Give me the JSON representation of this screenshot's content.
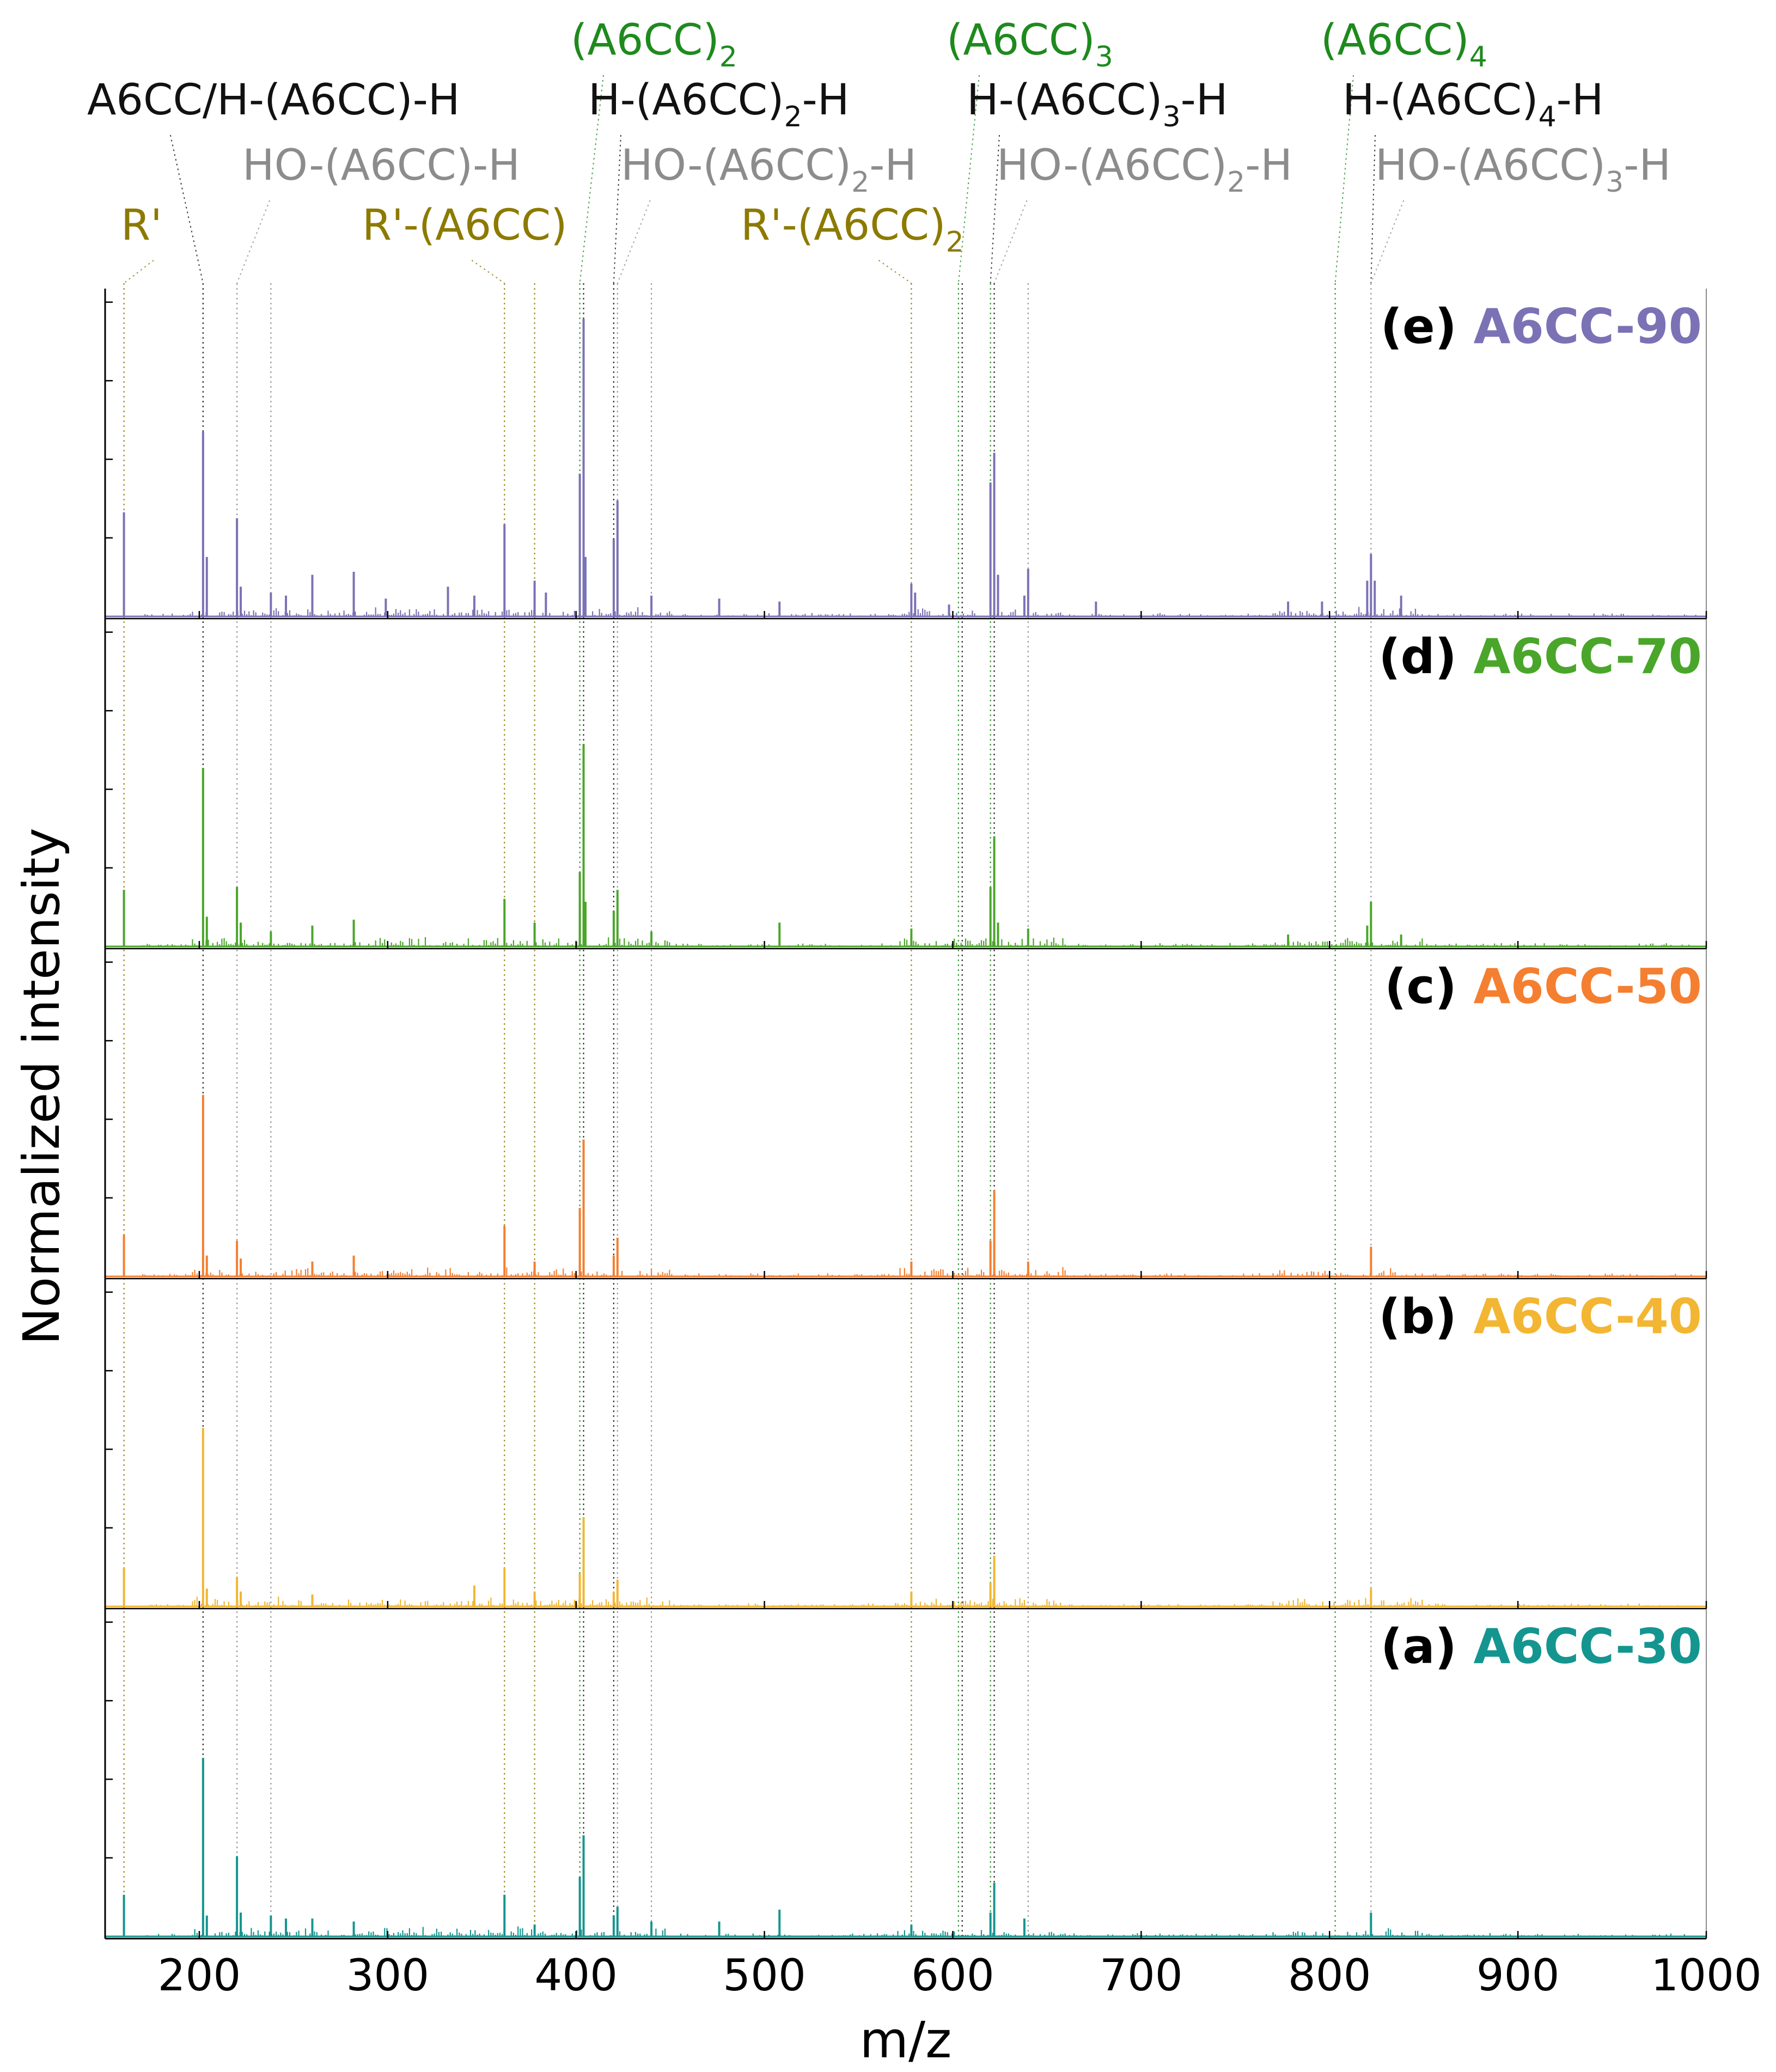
{
  "chart_data": {
    "type": "line",
    "title": "",
    "xlabel": "m/z",
    "ylabel": "Normalized intensity",
    "xlim": [
      150,
      1000
    ],
    "ylim": [
      0,
      1
    ],
    "x_ticks": [
      "200",
      "300",
      "400",
      "500",
      "600",
      "700",
      "800",
      "900",
      "1000"
    ],
    "x_tick_values": [
      200,
      300,
      400,
      500,
      600,
      700,
      800,
      900,
      1000
    ],
    "grid": false,
    "legend": "panel labels at top-right of each panel",
    "panels": [
      {
        "id": "e",
        "letter": "(e)",
        "name": "A6CC-90",
        "color": "#7b72b5",
        "peaks": [
          [
            160,
            0.35
          ],
          [
            202,
            0.62
          ],
          [
            204,
            0.2
          ],
          [
            220,
            0.33
          ],
          [
            222,
            0.1
          ],
          [
            238,
            0.08
          ],
          [
            246,
            0.07
          ],
          [
            260,
            0.14
          ],
          [
            282,
            0.15
          ],
          [
            299,
            0.06
          ],
          [
            332,
            0.1
          ],
          [
            346,
            0.07
          ],
          [
            362,
            0.31
          ],
          [
            378,
            0.12
          ],
          [
            384,
            0.08
          ],
          [
            402,
            0.48
          ],
          [
            404,
            1.0
          ],
          [
            405,
            0.2
          ],
          [
            420,
            0.26
          ],
          [
            422,
            0.39
          ],
          [
            440,
            0.07
          ],
          [
            476,
            0.06
          ],
          [
            508,
            0.05
          ],
          [
            578,
            0.11
          ],
          [
            580,
            0.08
          ],
          [
            598,
            0.04
          ],
          [
            620,
            0.45
          ],
          [
            622,
            0.55
          ],
          [
            624,
            0.14
          ],
          [
            638,
            0.07
          ],
          [
            640,
            0.16
          ],
          [
            676,
            0.05
          ],
          [
            778,
            0.05
          ],
          [
            796,
            0.05
          ],
          [
            820,
            0.12
          ],
          [
            822,
            0.21
          ],
          [
            824,
            0.12
          ],
          [
            838,
            0.07
          ]
        ]
      },
      {
        "id": "d",
        "letter": "(d)",
        "name": "A6CC-70",
        "color": "#4aa62a",
        "peaks": [
          [
            160,
            0.19
          ],
          [
            202,
            0.6
          ],
          [
            204,
            0.1
          ],
          [
            220,
            0.2
          ],
          [
            222,
            0.08
          ],
          [
            238,
            0.05
          ],
          [
            260,
            0.07
          ],
          [
            282,
            0.09
          ],
          [
            362,
            0.16
          ],
          [
            378,
            0.08
          ],
          [
            402,
            0.25
          ],
          [
            404,
            0.68
          ],
          [
            405,
            0.15
          ],
          [
            420,
            0.12
          ],
          [
            422,
            0.19
          ],
          [
            440,
            0.05
          ],
          [
            508,
            0.08
          ],
          [
            578,
            0.06
          ],
          [
            620,
            0.2
          ],
          [
            622,
            0.37
          ],
          [
            624,
            0.08
          ],
          [
            640,
            0.06
          ],
          [
            778,
            0.04
          ],
          [
            820,
            0.07
          ],
          [
            822,
            0.15
          ],
          [
            838,
            0.04
          ]
        ]
      },
      {
        "id": "c",
        "letter": "(c)",
        "name": "A6CC-50",
        "color": "#f47f30",
        "peaks": [
          [
            160,
            0.14
          ],
          [
            202,
            0.61
          ],
          [
            204,
            0.07
          ],
          [
            220,
            0.12
          ],
          [
            222,
            0.06
          ],
          [
            260,
            0.05
          ],
          [
            282,
            0.07
          ],
          [
            362,
            0.17
          ],
          [
            378,
            0.05
          ],
          [
            402,
            0.23
          ],
          [
            404,
            0.46
          ],
          [
            420,
            0.07
          ],
          [
            422,
            0.13
          ],
          [
            578,
            0.05
          ],
          [
            620,
            0.12
          ],
          [
            622,
            0.29
          ],
          [
            640,
            0.05
          ],
          [
            822,
            0.1
          ]
        ]
      },
      {
        "id": "b",
        "letter": "(b)",
        "name": "A6CC-40",
        "color": "#f2b632",
        "peaks": [
          [
            160,
            0.13
          ],
          [
            202,
            0.6
          ],
          [
            204,
            0.06
          ],
          [
            220,
            0.1
          ],
          [
            222,
            0.05
          ],
          [
            260,
            0.04
          ],
          [
            346,
            0.07
          ],
          [
            362,
            0.13
          ],
          [
            378,
            0.05
          ],
          [
            402,
            0.11
          ],
          [
            404,
            0.3
          ],
          [
            420,
            0.05
          ],
          [
            422,
            0.09
          ],
          [
            578,
            0.05
          ],
          [
            620,
            0.08
          ],
          [
            622,
            0.17
          ],
          [
            822,
            0.06
          ]
        ]
      },
      {
        "id": "a",
        "letter": "(a)",
        "name": "A6CC-30",
        "color": "#15958f",
        "peaks": [
          [
            160,
            0.14
          ],
          [
            202,
            0.6
          ],
          [
            204,
            0.07
          ],
          [
            220,
            0.27
          ],
          [
            222,
            0.08
          ],
          [
            238,
            0.07
          ],
          [
            246,
            0.06
          ],
          [
            260,
            0.06
          ],
          [
            282,
            0.05
          ],
          [
            362,
            0.14
          ],
          [
            378,
            0.04
          ],
          [
            402,
            0.2
          ],
          [
            404,
            0.34
          ],
          [
            420,
            0.07
          ],
          [
            422,
            0.1
          ],
          [
            440,
            0.05
          ],
          [
            476,
            0.05
          ],
          [
            508,
            0.09
          ],
          [
            578,
            0.04
          ],
          [
            620,
            0.08
          ],
          [
            622,
            0.18
          ],
          [
            638,
            0.06
          ],
          [
            822,
            0.08
          ]
        ]
      }
    ],
    "annotations": [
      {
        "text": "(A6CC)",
        "sub": "2",
        "color": "#1e8a1e",
        "x": 402
      },
      {
        "text": "(A6CC)",
        "sub": "3",
        "color": "#1e8a1e",
        "x": 603
      },
      {
        "text": "(A6CC)",
        "sub": "4",
        "color": "#1e8a1e",
        "x": 803
      },
      {
        "text": "A6CC/H-(A6CC)-H",
        "sub": "",
        "color": "#111111",
        "x": 202
      },
      {
        "text": "H-(A6CC)",
        "sub": "2",
        "tail": "-H",
        "color": "#111111",
        "x": 420
      },
      {
        "text": "H-(A6CC)",
        "sub": "3",
        "tail": "-H",
        "color": "#111111",
        "x": 620
      },
      {
        "text": "H-(A6CC)",
        "sub": "4",
        "tail": "-H",
        "color": "#111111",
        "x": 822
      },
      {
        "text": "HO-(A6CC)-H",
        "sub": "",
        "color": "#8c8c8c",
        "x": 220
      },
      {
        "text": "HO-(A6CC)",
        "sub": "2",
        "tail": "-H",
        "color": "#8c8c8c",
        "x": 422
      },
      {
        "text": "HO-(A6CC)",
        "sub": "2",
        "tail": "-H",
        "color": "#8c8c8c",
        "x": 622
      },
      {
        "text": "HO-(A6CC)",
        "sub": "3",
        "tail": "-H",
        "color": "#8c8c8c",
        "x": 822
      },
      {
        "text": "R'",
        "sub": "",
        "color": "#8c7a00",
        "x": 160
      },
      {
        "text": "R'-(A6CC)",
        "sub": "",
        "color": "#8c7a00",
        "x": 362
      },
      {
        "text": "R'-(A6CC)",
        "sub": "2",
        "color": "#8c7a00",
        "x": 578
      }
    ],
    "guide_lines": [
      {
        "x": 160,
        "color": "#8c7a00"
      },
      {
        "x": 202,
        "color": "#111111"
      },
      {
        "x": 220,
        "color": "#8c8c8c"
      },
      {
        "x": 238,
        "color": "#8c8c8c"
      },
      {
        "x": 362,
        "color": "#8c7a00"
      },
      {
        "x": 378,
        "color": "#8c7a00"
      },
      {
        "x": 402,
        "color": "#1e8a1e"
      },
      {
        "x": 404,
        "color": "#111111"
      },
      {
        "x": 420,
        "color": "#111111"
      },
      {
        "x": 422,
        "color": "#8c8c8c"
      },
      {
        "x": 440,
        "color": "#8c8c8c"
      },
      {
        "x": 578,
        "color": "#8c7a00"
      },
      {
        "x": 603,
        "color": "#1e8a1e"
      },
      {
        "x": 605,
        "color": "#111111"
      },
      {
        "x": 620,
        "color": "#1e8a1e"
      },
      {
        "x": 622,
        "color": "#111111"
      },
      {
        "x": 640,
        "color": "#8c8c8c"
      },
      {
        "x": 803,
        "color": "#1e8a1e"
      },
      {
        "x": 822,
        "color": "#8c8c8c"
      }
    ]
  }
}
